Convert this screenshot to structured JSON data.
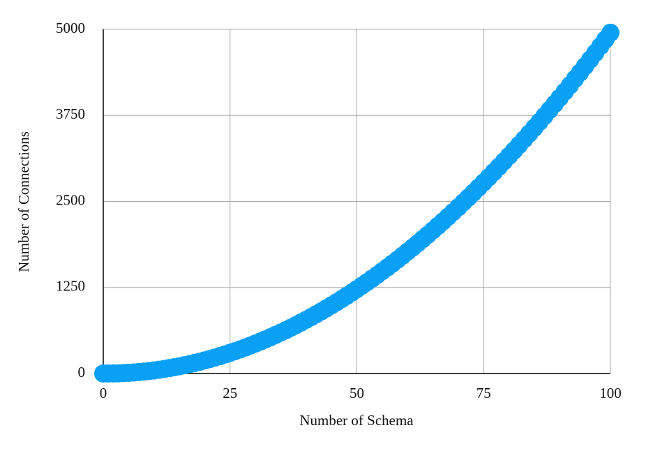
{
  "chart_data": {
    "type": "scatter",
    "xlabel": "Number of Schema",
    "ylabel": "Number of Connections",
    "x": [
      0,
      1,
      2,
      3,
      4,
      5,
      6,
      7,
      8,
      9,
      10,
      11,
      12,
      13,
      14,
      15,
      16,
      17,
      18,
      19,
      20,
      21,
      22,
      23,
      24,
      25,
      26,
      27,
      28,
      29,
      30,
      31,
      32,
      33,
      34,
      35,
      36,
      37,
      38,
      39,
      40,
      41,
      42,
      43,
      44,
      45,
      46,
      47,
      48,
      49,
      50,
      51,
      52,
      53,
      54,
      55,
      56,
      57,
      58,
      59,
      60,
      61,
      62,
      63,
      64,
      65,
      66,
      67,
      68,
      69,
      70,
      71,
      72,
      73,
      74,
      75,
      76,
      77,
      78,
      79,
      80,
      81,
      82,
      83,
      84,
      85,
      86,
      87,
      88,
      89,
      90,
      91,
      92,
      93,
      94,
      95,
      96,
      97,
      98,
      99,
      100
    ],
    "values": [
      0,
      0,
      1,
      3,
      6,
      10,
      15,
      21,
      28,
      36,
      45,
      55,
      66,
      78,
      91,
      105,
      120,
      136,
      153,
      171,
      190,
      210,
      231,
      253,
      276,
      300,
      325,
      351,
      378,
      406,
      435,
      465,
      496,
      528,
      561,
      595,
      630,
      666,
      703,
      741,
      780,
      820,
      861,
      903,
      946,
      990,
      1035,
      1081,
      1128,
      1176,
      1225,
      1275,
      1326,
      1378,
      1431,
      1485,
      1540,
      1596,
      1653,
      1711,
      1770,
      1830,
      1891,
      1953,
      2016,
      2080,
      2145,
      2211,
      2278,
      2346,
      2415,
      2485,
      2556,
      2628,
      2701,
      2775,
      2850,
      2926,
      3003,
      3081,
      3160,
      3240,
      3321,
      3403,
      3486,
      3570,
      3655,
      3741,
      3828,
      3916,
      4005,
      4095,
      4186,
      4278,
      4371,
      4465,
      4560,
      4656,
      4753,
      4851,
      4950
    ],
    "color": "#0aa0f6",
    "xlim": [
      0,
      100
    ],
    "xticks": [
      0,
      25,
      50,
      75,
      100
    ],
    "ylim": [
      0,
      5000
    ],
    "yticks": [
      0,
      1250,
      2500,
      3750,
      5000
    ],
    "grid": true
  }
}
